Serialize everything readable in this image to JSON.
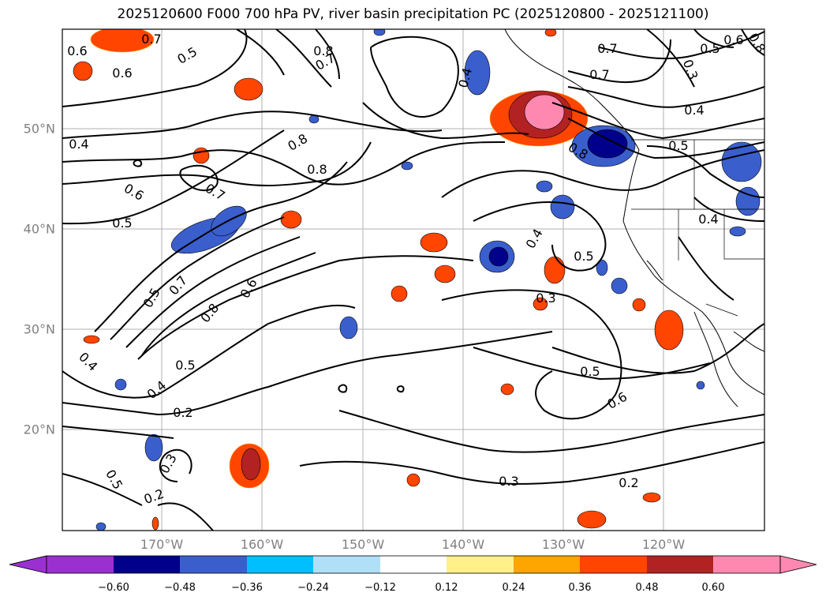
{
  "title": "2025120600 F000 700 hPa PV, river basin precipitation PC (2025120800 - 2025121100)",
  "lat_labels": [
    "50°N",
    "40°N",
    "30°N",
    "20°N"
  ],
  "lon_labels": [
    "170°W",
    "160°W",
    "150°W",
    "140°W",
    "130°W",
    "120°W"
  ],
  "colorbar": {
    "ticks": [
      "−0.60",
      "−0.48",
      "−0.36",
      "−0.24",
      "−0.12",
      "0.12",
      "0.24",
      "0.36",
      "0.48",
      "0.60"
    ],
    "colors": [
      "#9b30d0",
      "#00008b",
      "#3a5fcd",
      "#00bfff",
      "#b0e0f8",
      "#ffffff",
      "#fff08a",
      "#ffa500",
      "#ff4500",
      "#b22222",
      "#ff88b0"
    ]
  },
  "contour_labels": [
    "0.7",
    "0.5",
    "0.6",
    "0.8",
    "0.7",
    "0.5",
    "0.6",
    "0.7",
    "0.4",
    "0.3",
    "0.4",
    "0.8",
    "0.7",
    "0.6",
    "0.5",
    "0.8",
    "0.5",
    "0.7",
    "0.4",
    "0.5",
    "0.3",
    "0.5",
    "0.6",
    "0.4",
    "0.2",
    "0.3",
    "0.5",
    "0.2",
    "0.3",
    "0.2",
    "0.4",
    "0.8",
    "0.6",
    "0.4",
    "0.7",
    "0.8",
    "0.5",
    "0.6",
    "0.4",
    "0.5",
    "0.8"
  ]
}
